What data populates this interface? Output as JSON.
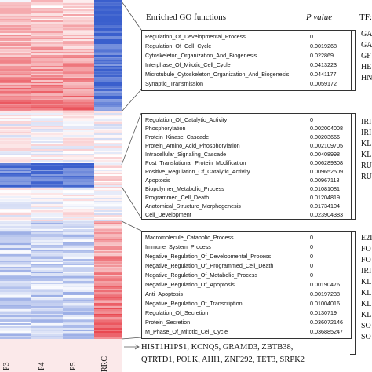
{
  "header": {
    "enriched": "Enriched GO functions",
    "pvalue": "P value",
    "tf": "TF:"
  },
  "columns": [
    "P3",
    "P4",
    "P5",
    "RRC"
  ],
  "clusters": [
    {
      "functions": [
        {
          "name": "Regulation_Of_Developmental_Process",
          "p": "0"
        },
        {
          "name": "Regulation_Of_Cell_Cycle",
          "p": "0.0019268"
        },
        {
          "name": "Cytoskeleton_Organization_And_Biogenesis",
          "p": "0.022869"
        },
        {
          "name": "Interphase_Of_Mitotic_Cell_Cycle",
          "p": "0.0413223"
        },
        {
          "name": "Microtubule_Cytoskeleton_Organization_And_Biogenesis",
          "p": "0.0441177"
        },
        {
          "name": "Synaptic_Transmission",
          "p": "0.0059172"
        }
      ],
      "tfs": [
        "GA",
        "GA",
        "GF",
        "HE",
        "HN"
      ]
    },
    {
      "functions": [
        {
          "name": "Regulation_Of_Catalytic_Activity",
          "p": "0"
        },
        {
          "name": "Phosphorylation",
          "p": "0.002004008"
        },
        {
          "name": "Protein_Kinase_Cascade",
          "p": "0.00203666"
        },
        {
          "name": "Protein_Amino_Acid_Phosphorylation",
          "p": "0.002109705"
        },
        {
          "name": "Intracellular_Signaling_Cascade",
          "p": "0.00408998"
        },
        {
          "name": "Post_Translational_Protein_Modification",
          "p": "0.006289308"
        },
        {
          "name": "Positive_Regulation_Of_Catalytic_Activity",
          "p": "0.009652509"
        },
        {
          "name": "Apoptosis",
          "p": "0.00967118"
        },
        {
          "name": "Biopolymer_Metabolic_Process",
          "p": "0.01081081"
        },
        {
          "name": "Programmed_Cell_Death",
          "p": "0.01204819"
        },
        {
          "name": "Anatomical_Structure_Morphogenesis",
          "p": "0.01734104"
        },
        {
          "name": "Cell_Development",
          "p": "0.023904383"
        }
      ],
      "tfs": [
        "IRI",
        "IRI",
        "KL",
        "KL",
        "RU",
        "RU"
      ]
    },
    {
      "functions": [
        {
          "name": "Macromolecule_Catabolic_Process",
          "p": "0"
        },
        {
          "name": "Immune_System_Process",
          "p": "0"
        },
        {
          "name": "Negative_Regulation_Of_Developmental_Process",
          "p": "0"
        },
        {
          "name": "Negative_Regulation_Of_Programmed_Cell_Death",
          "p": "0"
        },
        {
          "name": "Negative_Regulation_Of_Metabolic_Process",
          "p": "0"
        },
        {
          "name": "Negative_Regulation_Of_Apoptosis",
          "p": "0.00190476"
        },
        {
          "name": "Anti_Apoptosis",
          "p": "0.00197238"
        },
        {
          "name": "Negative_Regulation_Of_Transcription",
          "p": "0.01004016"
        },
        {
          "name": "Regulation_Of_Secretion",
          "p": "0.0130719"
        },
        {
          "name": "Protein_Secretion",
          "p": "0.036072146"
        },
        {
          "name": "M_Phase_Of_Mitotic_Cell_Cycle",
          "p": "0.036885247"
        }
      ],
      "tfs": [
        "E2I",
        "FO",
        "FO",
        "IRI",
        "KL",
        "KL",
        "KL",
        "KL",
        "SO",
        "SO"
      ]
    }
  ],
  "genes": {
    "line1": "HIST1H1PS1, KCNQ5, GRAMD3, ZBTB38,",
    "line2": "QTRTD1, POLK, AHI1, ZNF292, TET3, SRPK2"
  },
  "colors": {
    "high": "#e8414a",
    "low": "#3a5fcd",
    "mid": "#ffffff"
  }
}
